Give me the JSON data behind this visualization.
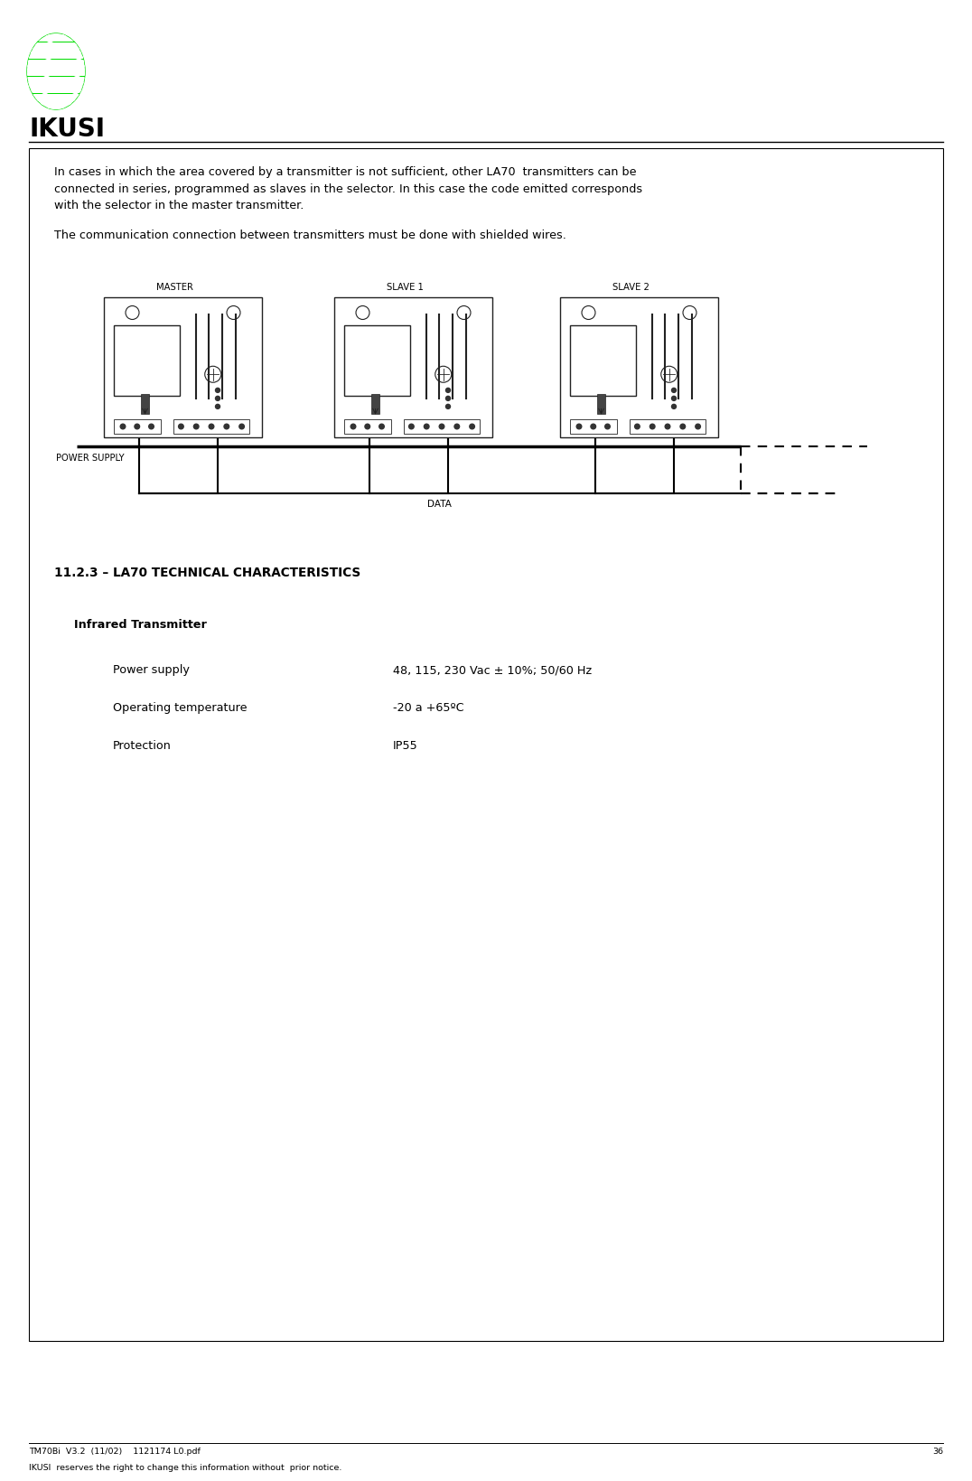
{
  "page_width": 10.76,
  "page_height": 16.39,
  "dpi": 100,
  "bg_color": "#ffffff",
  "logo_text": "IKUSI",
  "logo_color": "#00dd00",
  "footer_line1": "TM70Bi  V3.2  (11/02)    1121174 L0.pdf",
  "footer_line2": "IKUSI  reserves the right to change this information without  prior notice.",
  "footer_page": "36",
  "main_text1": "In cases in which the area covered by a transmitter is not sufficient, other LA70  transmitters can be\nconnected in series, programmed as slaves in the selector. In this case the code emitted corresponds\nwith the selector in the master transmitter.",
  "main_text2": "The communication connection between transmitters must be done with shielded wires.",
  "section_title": "11.2.3 – LA70 TECHNICAL CHARACTERISTICS",
  "subsection": "Infrared Transmitter",
  "spec1_label": "Power supply",
  "spec1_value": "48, 115, 230 Vac ± 10%; 50/60 Hz",
  "spec2_label": "Operating temperature",
  "spec2_value": "-20 a +65ºC",
  "spec3_label": "Protection",
  "spec3_value": "IP55",
  "diagram_label_master": "MASTER",
  "diagram_label_slave1": "SLAVE 1",
  "diagram_label_slave2": "SLAVE 2",
  "diagram_label_power": "POWER SUPPLY",
  "diagram_label_data": "DATA"
}
